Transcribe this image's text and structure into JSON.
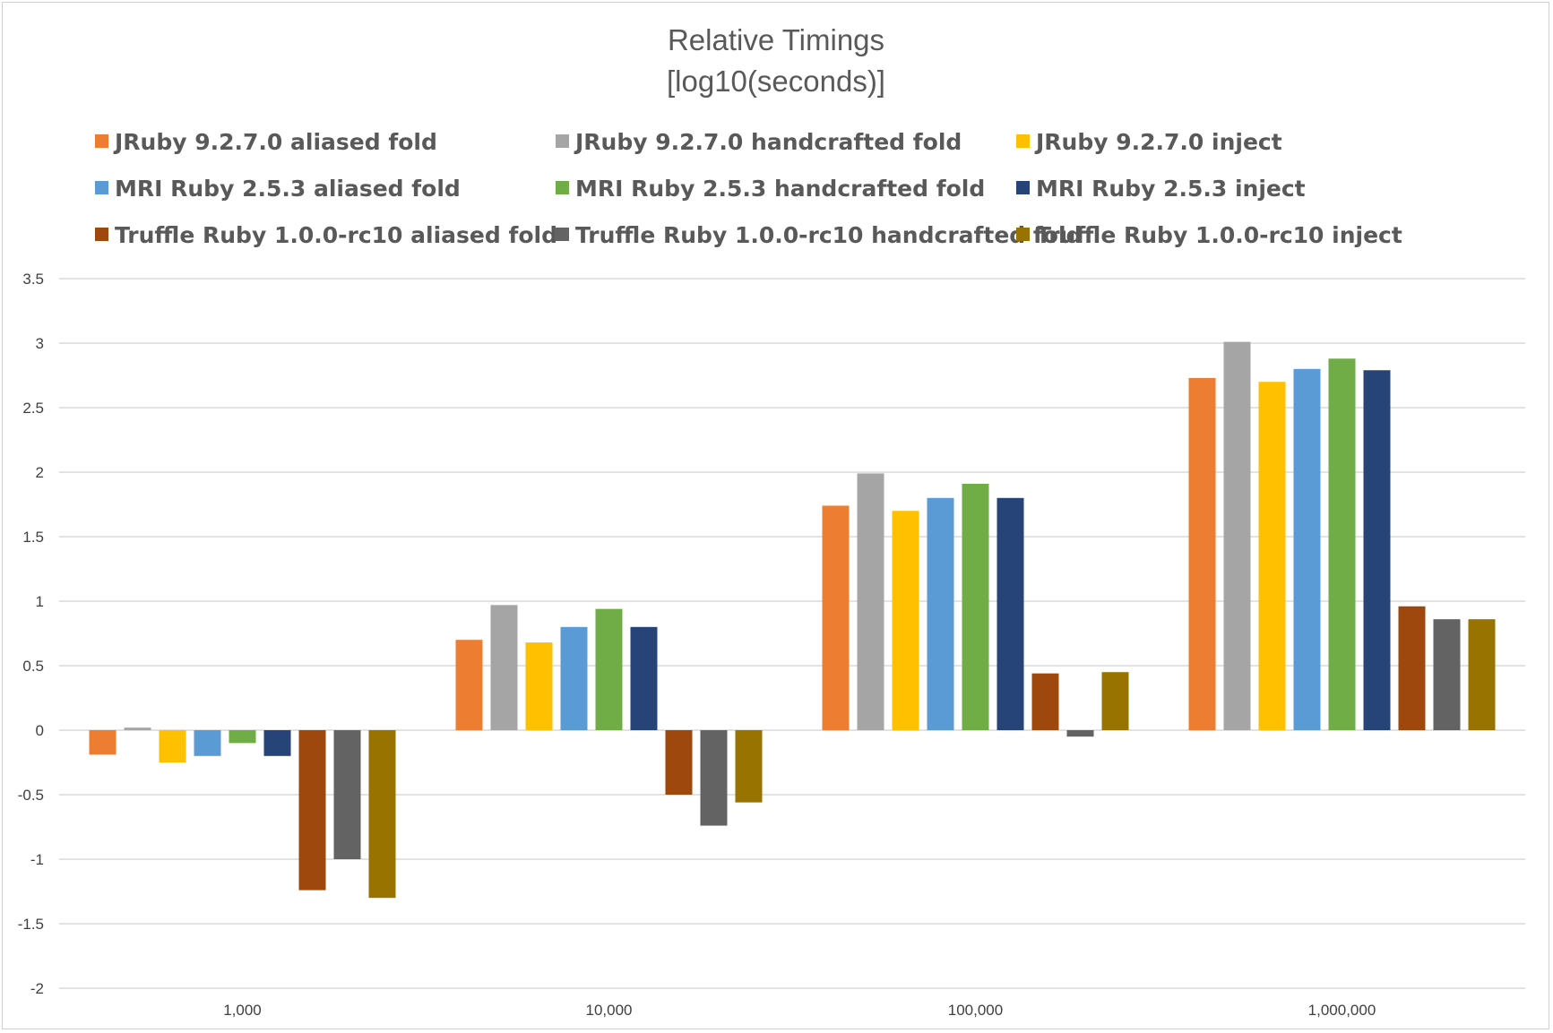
{
  "chart_data": {
    "type": "bar",
    "title": "Relative Timings",
    "subtitle": "[log10(seconds)]",
    "xlabel": "",
    "ylabel": "",
    "categories": [
      "1,000",
      "10,000",
      "100,000",
      "1,000,000"
    ],
    "y_ticks": [
      "3.5",
      "3",
      "2.5",
      "2",
      "1.5",
      "1",
      "0.5",
      "0",
      "-0.5",
      "-1",
      "-1.5",
      "-2"
    ],
    "ylim": [
      -2,
      3.5
    ],
    "grid": true,
    "legend_position": "top",
    "series": [
      {
        "name": "JRuby 9.2.7.0 aliased fold",
        "color": "#ED7D31",
        "values": [
          -0.19,
          0.7,
          1.74,
          2.73
        ]
      },
      {
        "name": "JRuby 9.2.7.0 handcrafted fold",
        "color": "#A5A5A5",
        "values": [
          0.02,
          0.97,
          1.99,
          3.01
        ]
      },
      {
        "name": "JRuby 9.2.7.0 inject",
        "color": "#FFC000",
        "values": [
          -0.25,
          0.68,
          1.7,
          2.7
        ]
      },
      {
        "name": "MRI Ruby 2.5.3 aliased fold",
        "color": "#5B9BD5",
        "values": [
          -0.2,
          0.8,
          1.8,
          2.8
        ]
      },
      {
        "name": "MRI Ruby 2.5.3 handcrafted fold",
        "color": "#70AD47",
        "values": [
          -0.1,
          0.94,
          1.91,
          2.88
        ]
      },
      {
        "name": "MRI Ruby 2.5.3 inject",
        "color": "#264478",
        "values": [
          -0.2,
          0.8,
          1.8,
          2.79
        ]
      },
      {
        "name": "Truffle Ruby 1.0.0-rc10 aliased fold",
        "color": "#9E480E",
        "values": [
          -1.24,
          -0.5,
          0.44,
          0.96
        ]
      },
      {
        "name": "Truffle Ruby 1.0.0-rc10 handcrafted fold",
        "color": "#636363",
        "values": [
          -1.0,
          -0.74,
          -0.05,
          0.86
        ]
      },
      {
        "name": "Truffle Ruby 1.0.0-rc10 inject",
        "color": "#997300",
        "values": [
          -1.3,
          -0.56,
          0.45,
          0.86
        ]
      }
    ]
  }
}
